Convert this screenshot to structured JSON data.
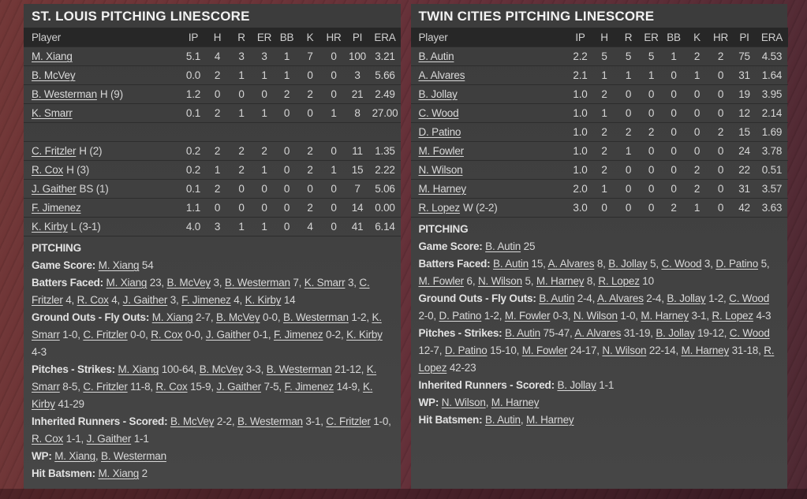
{
  "colors": {
    "panel_bg": "#3f3f3f",
    "header_row_bg": "#272727",
    "separator": "#2d2d2d",
    "text": "#d9d9d9",
    "title_text": "#f2f2f2",
    "page_bg": "#5f2e36"
  },
  "left_panel": {
    "title": "ST. LOUIS PITCHING LINESCORE",
    "columns": [
      "Player",
      "IP",
      "H",
      "R",
      "ER",
      "BB",
      "K",
      "HR",
      "PI",
      "ERA"
    ],
    "rows": [
      {
        "name": "M. Xiang",
        "suffix": "",
        "stats": [
          "5.1",
          "4",
          "3",
          "3",
          "1",
          "7",
          "0",
          "100",
          "3.21"
        ]
      },
      {
        "name": "B. McVey",
        "suffix": "",
        "stats": [
          "0.0",
          "2",
          "1",
          "1",
          "1",
          "0",
          "0",
          "3",
          "5.66"
        ]
      },
      {
        "name": "B. Westerman",
        "suffix": "H (9)",
        "stats": [
          "1.2",
          "0",
          "0",
          "0",
          "2",
          "2",
          "0",
          "21",
          "2.49"
        ]
      },
      {
        "name": "K. Smarr",
        "suffix": "",
        "stats": [
          "0.1",
          "2",
          "1",
          "1",
          "0",
          "0",
          "1",
          "8",
          "27.00"
        ]
      },
      {
        "blank": true
      },
      {
        "name": "C. Fritzler",
        "suffix": "H (2)",
        "stats": [
          "0.2",
          "2",
          "2",
          "2",
          "0",
          "2",
          "0",
          "11",
          "1.35"
        ]
      },
      {
        "name": "R. Cox",
        "suffix": "H (3)",
        "stats": [
          "0.2",
          "1",
          "2",
          "1",
          "0",
          "2",
          "1",
          "15",
          "2.22"
        ]
      },
      {
        "name": "J. Gaither",
        "suffix": "BS (1)",
        "stats": [
          "0.1",
          "2",
          "0",
          "0",
          "0",
          "0",
          "0",
          "7",
          "5.06"
        ]
      },
      {
        "name": "F. Jimenez",
        "suffix": "",
        "stats": [
          "1.1",
          "0",
          "0",
          "0",
          "0",
          "2",
          "0",
          "14",
          "0.00"
        ]
      },
      {
        "name": "K. Kirby",
        "suffix": "L (3-1)",
        "stats": [
          "4.0",
          "3",
          "1",
          "1",
          "0",
          "4",
          "0",
          "41",
          "6.14"
        ]
      }
    ],
    "pitching": {
      "header": "PITCHING",
      "lines": [
        {
          "label": "Game Score:",
          "parts": [
            {
              "n": "M. Xiang",
              "v": " 54"
            }
          ]
        },
        {
          "label": "Batters Faced:",
          "parts": [
            {
              "n": "M. Xiang",
              "v": " 23, "
            },
            {
              "n": "B. McVey",
              "v": " 3, "
            },
            {
              "n": "B. Westerman",
              "v": " 7, "
            },
            {
              "n": "K. Smarr",
              "v": " 3, "
            },
            {
              "n": "C. Fritzler",
              "v": " 4, "
            },
            {
              "n": "R. Cox",
              "v": " 4, "
            },
            {
              "n": "J. Gaither",
              "v": " 3, "
            },
            {
              "n": "F. Jimenez",
              "v": " 4, "
            },
            {
              "n": "K. Kirby",
              "v": " 14"
            }
          ]
        },
        {
          "label": "Ground Outs - Fly Outs:",
          "parts": [
            {
              "n": "M. Xiang",
              "v": " 2-7, "
            },
            {
              "n": "B. McVey",
              "v": " 0-0, "
            },
            {
              "n": "B. Westerman",
              "v": " 1-2, "
            },
            {
              "n": "K. Smarr",
              "v": " 1-0, "
            },
            {
              "n": "C. Fritzler",
              "v": " 0-0, "
            },
            {
              "n": "R. Cox",
              "v": " 0-0, "
            },
            {
              "n": "J. Gaither",
              "v": " 0-1, "
            },
            {
              "n": "F. Jimenez",
              "v": " 0-2, "
            },
            {
              "n": "K. Kirby",
              "v": " 4-3"
            }
          ]
        },
        {
          "label": "Pitches - Strikes:",
          "parts": [
            {
              "n": "M. Xiang",
              "v": " 100-64, "
            },
            {
              "n": "B. McVey",
              "v": " 3-3, "
            },
            {
              "n": "B. Westerman",
              "v": " 21-12, "
            },
            {
              "n": "K. Smarr",
              "v": " 8-5, "
            },
            {
              "n": "C. Fritzler",
              "v": " 11-8, "
            },
            {
              "n": "R. Cox",
              "v": " 15-9, "
            },
            {
              "n": "J. Gaither",
              "v": " 7-5, "
            },
            {
              "n": "F. Jimenez",
              "v": " 14-9, "
            },
            {
              "n": "K. Kirby",
              "v": " 41-29"
            }
          ]
        },
        {
          "label": "Inherited Runners - Scored:",
          "parts": [
            {
              "n": "B. McVey",
              "v": " 2-2, "
            },
            {
              "n": "B. Westerman",
              "v": " 3-1, "
            },
            {
              "n": "C. Fritzler",
              "v": " 1-0, "
            },
            {
              "n": "R. Cox",
              "v": " 1-1, "
            },
            {
              "n": "J. Gaither",
              "v": " 1-1"
            }
          ]
        },
        {
          "label": "WP:",
          "parts": [
            {
              "n": "M. Xiang",
              "v": ", "
            },
            {
              "n": "B. Westerman",
              "v": ""
            }
          ]
        },
        {
          "label": "Hit Batsmen:",
          "parts": [
            {
              "n": "M. Xiang",
              "v": " 2"
            }
          ]
        }
      ]
    }
  },
  "right_panel": {
    "title": "TWIN CITIES PITCHING LINESCORE",
    "columns": [
      "Player",
      "IP",
      "H",
      "R",
      "ER",
      "BB",
      "K",
      "HR",
      "PI",
      "ERA"
    ],
    "rows": [
      {
        "name": "B. Autin",
        "suffix": "",
        "stats": [
          "2.2",
          "5",
          "5",
          "5",
          "1",
          "2",
          "2",
          "75",
          "4.53"
        ]
      },
      {
        "name": "A. Alvares",
        "suffix": "",
        "stats": [
          "2.1",
          "1",
          "1",
          "1",
          "0",
          "1",
          "0",
          "31",
          "1.64"
        ]
      },
      {
        "name": "B. Jollay",
        "suffix": "",
        "stats": [
          "1.0",
          "2",
          "0",
          "0",
          "0",
          "0",
          "0",
          "19",
          "3.95"
        ]
      },
      {
        "name": "C. Wood",
        "suffix": "",
        "stats": [
          "1.0",
          "1",
          "0",
          "0",
          "0",
          "0",
          "0",
          "12",
          "2.14"
        ]
      },
      {
        "name": "D. Patino",
        "suffix": "",
        "stats": [
          "1.0",
          "2",
          "2",
          "2",
          "0",
          "0",
          "2",
          "15",
          "1.69"
        ]
      },
      {
        "name": "M. Fowler",
        "suffix": "",
        "stats": [
          "1.0",
          "2",
          "1",
          "0",
          "0",
          "0",
          "0",
          "24",
          "3.78"
        ]
      },
      {
        "name": "N. Wilson",
        "suffix": "",
        "stats": [
          "1.0",
          "2",
          "0",
          "0",
          "0",
          "2",
          "0",
          "22",
          "0.51"
        ]
      },
      {
        "name": "M. Harney",
        "suffix": "",
        "stats": [
          "2.0",
          "1",
          "0",
          "0",
          "0",
          "2",
          "0",
          "31",
          "3.57"
        ]
      },
      {
        "name": "R. Lopez",
        "suffix": "W (2-2)",
        "stats": [
          "3.0",
          "0",
          "0",
          "0",
          "2",
          "1",
          "0",
          "42",
          "3.63"
        ]
      }
    ],
    "pitching": {
      "header": "PITCHING",
      "lines": [
        {
          "label": "Game Score:",
          "parts": [
            {
              "n": "B. Autin",
              "v": " 25"
            }
          ]
        },
        {
          "label": "Batters Faced:",
          "parts": [
            {
              "n": "B. Autin",
              "v": " 15, "
            },
            {
              "n": "A. Alvares",
              "v": " 8, "
            },
            {
              "n": "B. Jollay",
              "v": " 5, "
            },
            {
              "n": "C. Wood",
              "v": " 3, "
            },
            {
              "n": "D. Patino",
              "v": " 5, "
            },
            {
              "n": "M. Fowler",
              "v": " 6, "
            },
            {
              "n": "N. Wilson",
              "v": " 5, "
            },
            {
              "n": "M. Harney",
              "v": " 8, "
            },
            {
              "n": "R. Lopez",
              "v": " 10"
            }
          ]
        },
        {
          "label": "Ground Outs - Fly Outs:",
          "parts": [
            {
              "n": "B. Autin",
              "v": " 2-4, "
            },
            {
              "n": "A. Alvares",
              "v": " 2-4, "
            },
            {
              "n": "B. Jollay",
              "v": " 1-2, "
            },
            {
              "n": "C. Wood",
              "v": " 2-0, "
            },
            {
              "n": "D. Patino",
              "v": " 1-2, "
            },
            {
              "n": "M. Fowler",
              "v": " 0-3, "
            },
            {
              "n": "N. Wilson",
              "v": " 1-0, "
            },
            {
              "n": "M. Harney",
              "v": " 3-1, "
            },
            {
              "n": "R. Lopez",
              "v": " 4-3"
            }
          ]
        },
        {
          "label": "Pitches - Strikes:",
          "parts": [
            {
              "n": "B. Autin",
              "v": " 75-47, "
            },
            {
              "n": "A. Alvares",
              "v": " 31-19, "
            },
            {
              "n": "B. Jollay",
              "v": " 19-12, "
            },
            {
              "n": "C. Wood",
              "v": " 12-7, "
            },
            {
              "n": "D. Patino",
              "v": " 15-10, "
            },
            {
              "n": "M. Fowler",
              "v": " 24-17, "
            },
            {
              "n": "N. Wilson",
              "v": " 22-14, "
            },
            {
              "n": "M. Harney",
              "v": " 31-18, "
            },
            {
              "n": "R. Lopez",
              "v": " 42-23"
            }
          ]
        },
        {
          "label": "Inherited Runners - Scored:",
          "parts": [
            {
              "n": "B. Jollay",
              "v": " 1-1"
            }
          ]
        },
        {
          "label": "WP:",
          "parts": [
            {
              "n": "N. Wilson",
              "v": ", "
            },
            {
              "n": "M. Harney",
              "v": ""
            }
          ]
        },
        {
          "label": "Hit Batsmen:",
          "parts": [
            {
              "n": "B. Autin",
              "v": ", "
            },
            {
              "n": "M. Harney",
              "v": ""
            }
          ]
        }
      ]
    }
  }
}
